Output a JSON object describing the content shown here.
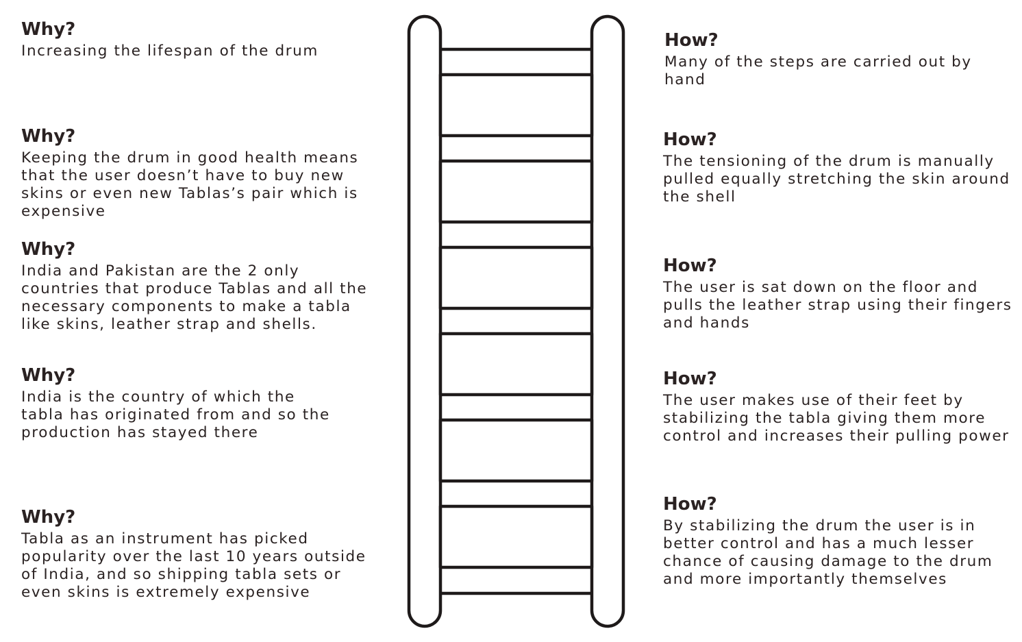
{
  "why": [
    {
      "heading": "Why?",
      "text": "Increasing the lifespan of the drum"
    },
    {
      "heading": "Why?",
      "text": "Keeping the drum in good health means\nthat the user doesn’t have to buy new\nskins or even new Tablas’s pair which is\nexpensive"
    },
    {
      "heading": "Why?",
      "text": "India and Pakistan are the 2 only\ncountries that produce Tablas and all the\nnecessary components to make a tabla\nlike skins, leather strap and shells."
    },
    {
      "heading": "Why?",
      "text": "India is the country of which the\ntabla has originated from and so the\nproduction has stayed there"
    },
    {
      "heading": "Why?",
      "text": "Tabla as an instrument has picked\npopularity over the last 10 years outside\nof India, and so shipping tabla sets or\neven skins is extremely expensive"
    }
  ],
  "how": [
    {
      "heading": "How?",
      "text": "Many of the steps are carried out by\nhand"
    },
    {
      "heading": "How?",
      "text": "The tensioning of the drum is manually\npulled equally stretching the skin around\nthe shell"
    },
    {
      "heading": "How?",
      "text": "The user is sat down on the floor and\npulls the leather strap using their fingers\nand hands"
    },
    {
      "heading": "How?",
      "text": "The user makes use of their feet by\nstabilizing the tabla giving them more\ncontrol and increases their pulling power"
    },
    {
      "heading": "How?",
      "text": "By stabilizing the drum the user is in\nbetter control and has a much lesser\nchance of causing damage to the drum\nand more importantly themselves"
    }
  ],
  "ladder": {
    "rungs": 6,
    "stroke_color": "#1e1a1a"
  }
}
